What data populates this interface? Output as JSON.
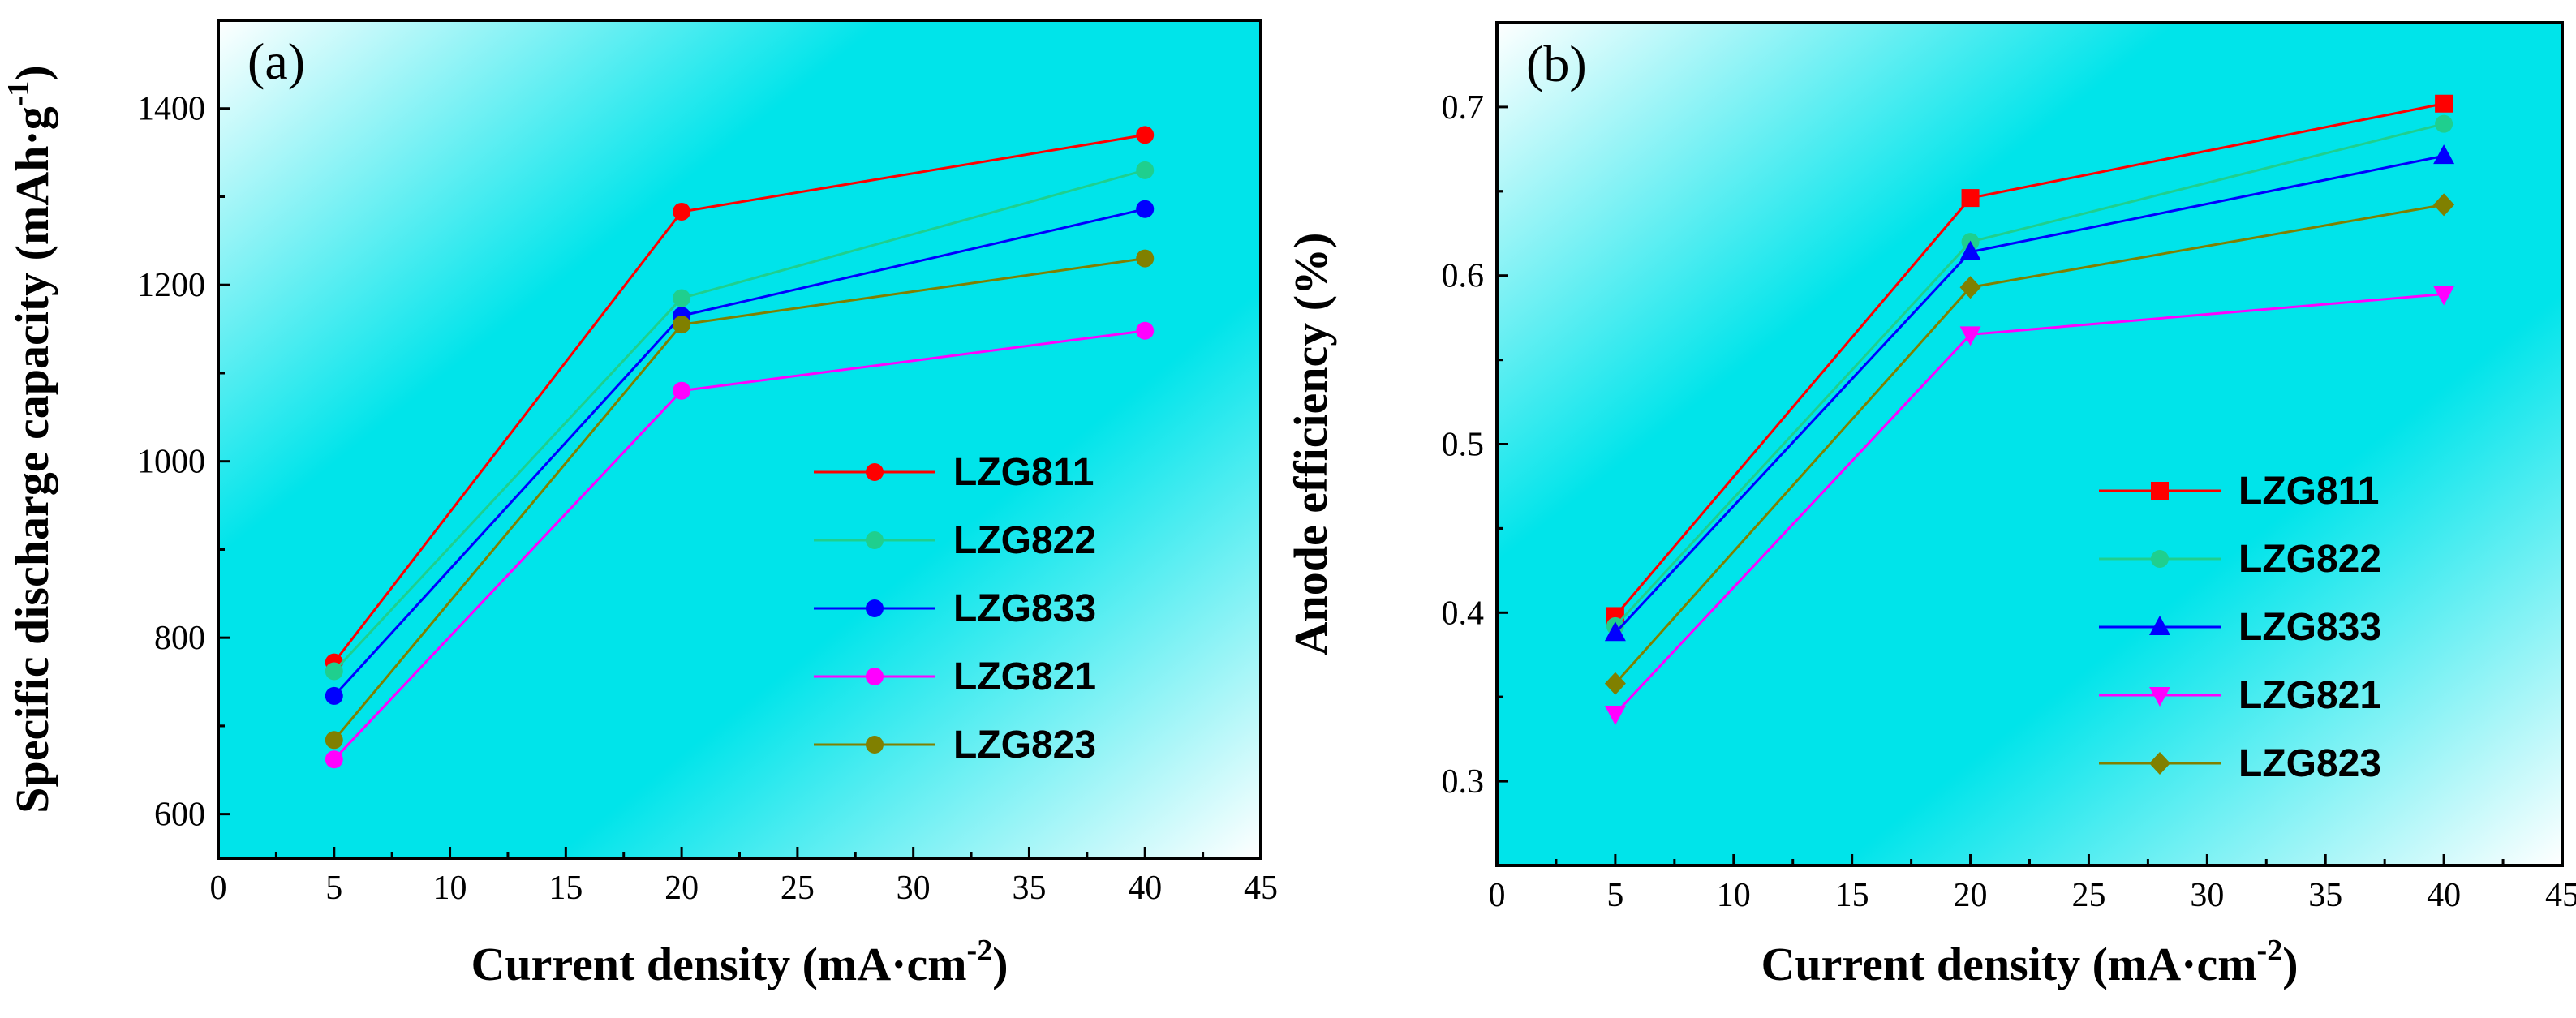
{
  "chart_data": [
    {
      "type": "line",
      "panel_label": "(a)",
      "title": "",
      "xlabel": "Current density (mA·cm",
      "xlabel_sup": "-2",
      "xlabel_end": ")",
      "ylabel": "Specific discharge capacity (mAh·g",
      "ylabel_sup": "-1",
      "ylabel_end": ")",
      "xlim": [
        0,
        45
      ],
      "ylim": [
        550,
        1500
      ],
      "xticks": [
        0,
        5,
        10,
        15,
        20,
        25,
        30,
        35,
        40,
        45
      ],
      "xtick_labels": [
        "0",
        "5",
        "10",
        "15",
        "20",
        "25",
        "30",
        "35",
        "40",
        "45"
      ],
      "yticks": [
        600,
        800,
        1000,
        1200,
        1400
      ],
      "ytick_labels": [
        "600",
        "800",
        "1000",
        "1200",
        "1400"
      ],
      "legend_position": "center-right",
      "x": [
        5,
        20,
        40
      ],
      "series": [
        {
          "name": "LZG811",
          "color": "#ff0000",
          "marker": "circle",
          "values": [
            772,
            1283,
            1370
          ]
        },
        {
          "name": "LZG822",
          "color": "#1fcf8e",
          "marker": "circle",
          "values": [
            762,
            1185,
            1330
          ]
        },
        {
          "name": "LZG833",
          "color": "#0000ff",
          "marker": "circle",
          "values": [
            734,
            1165,
            1286
          ]
        },
        {
          "name": "LZG821",
          "color": "#ff00ff",
          "marker": "circle",
          "values": [
            662,
            1080,
            1148
          ]
        },
        {
          "name": "LZG823",
          "color": "#808000",
          "marker": "circle",
          "values": [
            684,
            1155,
            1230
          ]
        }
      ]
    },
    {
      "type": "line",
      "panel_label": "(b)",
      "title": "",
      "xlabel": "Current density (mA·cm",
      "xlabel_sup": "-2",
      "xlabel_end": ")",
      "ylabel": "Anode efficiency (%)",
      "ylabel_sup": "",
      "ylabel_end": "",
      "xlim": [
        0,
        45
      ],
      "ylim": [
        0.25,
        0.75
      ],
      "xticks": [
        0,
        5,
        10,
        15,
        20,
        25,
        30,
        35,
        40,
        45
      ],
      "xtick_labels": [
        "0",
        "5",
        "10",
        "15",
        "20",
        "25",
        "30",
        "35",
        "40",
        "45"
      ],
      "yticks": [
        0.3,
        0.4,
        0.5,
        0.6,
        0.7
      ],
      "ytick_labels": [
        "0.3",
        "0.4",
        "0.5",
        "0.6",
        "0.7"
      ],
      "legend_position": "center-right",
      "x": [
        5,
        20,
        40
      ],
      "series": [
        {
          "name": "LZG811",
          "color": "#ff0000",
          "marker": "square",
          "values": [
            0.398,
            0.646,
            0.702
          ]
        },
        {
          "name": "LZG822",
          "color": "#1fcf8e",
          "marker": "circle",
          "values": [
            0.392,
            0.62,
            0.69
          ]
        },
        {
          "name": "LZG833",
          "color": "#0000ff",
          "marker": "triangle-up",
          "values": [
            0.388,
            0.614,
            0.671
          ]
        },
        {
          "name": "LZG821",
          "color": "#ff00ff",
          "marker": "triangle-down",
          "values": [
            0.34,
            0.565,
            0.589
          ]
        },
        {
          "name": "LZG823",
          "color": "#808000",
          "marker": "diamond",
          "values": [
            0.358,
            0.593,
            0.642
          ]
        }
      ]
    }
  ]
}
